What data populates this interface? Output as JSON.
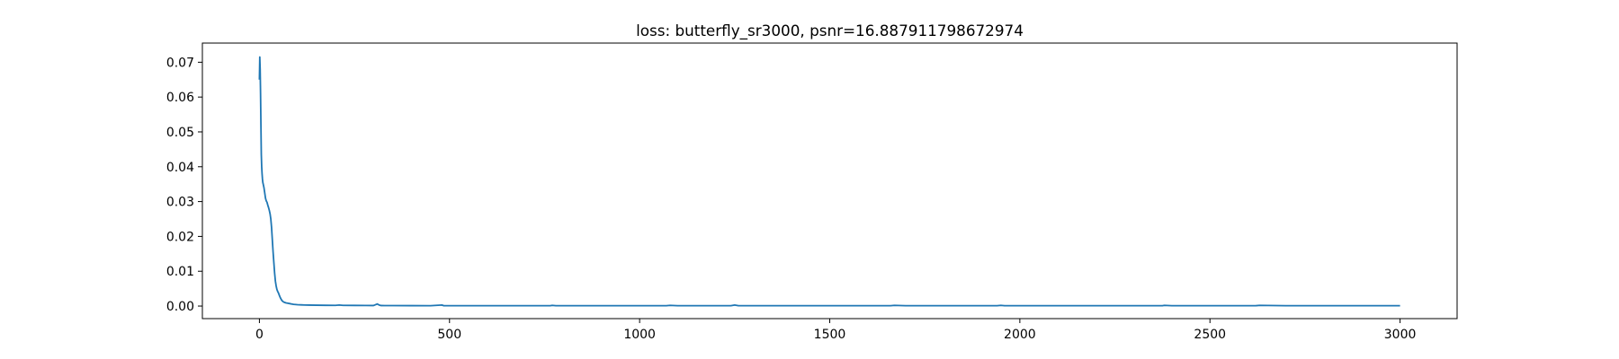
{
  "chart_data": {
    "type": "line",
    "title": "loss: butterfly_sr3000, psnr=16.887911798672974",
    "xlabel": "",
    "ylabel": "",
    "xlim": [
      -150,
      3150
    ],
    "ylim": [
      -0.0036,
      0.0755
    ],
    "xticks": [
      0,
      500,
      1000,
      1500,
      2000,
      2500,
      3000
    ],
    "xtick_labels": [
      "0",
      "500",
      "1000",
      "1500",
      "2000",
      "2500",
      "3000"
    ],
    "yticks": [
      0.0,
      0.01,
      0.02,
      0.03,
      0.04,
      0.05,
      0.06,
      0.07
    ],
    "ytick_labels": [
      "0.00",
      "0.01",
      "0.02",
      "0.03",
      "0.04",
      "0.05",
      "0.06",
      "0.07"
    ],
    "grid": false,
    "legend": "none",
    "line_color": "#1f77b4",
    "series": [
      {
        "x": [
          0,
          1,
          2,
          3,
          4,
          5,
          6,
          7,
          8,
          9,
          10,
          12,
          14,
          16,
          18,
          20,
          22,
          24,
          26,
          28,
          30,
          32,
          34,
          36,
          38,
          40,
          42,
          44,
          46,
          48,
          50,
          52,
          55,
          58,
          60,
          62,
          65,
          70,
          75,
          80,
          85,
          90,
          100,
          110,
          120,
          130,
          150,
          175,
          200,
          210,
          220,
          250,
          280,
          300,
          310,
          315,
          320,
          330,
          350,
          400,
          450,
          480,
          485,
          490,
          500,
          600,
          700,
          765,
          770,
          780,
          800,
          900,
          1000,
          1070,
          1080,
          1100,
          1200,
          1240,
          1250,
          1260,
          1300,
          1400,
          1500,
          1600,
          1660,
          1670,
          1700,
          1800,
          1900,
          1940,
          1950,
          1960,
          2000,
          2100,
          2200,
          2300,
          2375,
          2380,
          2400,
          2500,
          2600,
          2620,
          2630,
          2700,
          2800,
          2900,
          3000
        ],
        "y": [
          0.065,
          0.0715,
          0.068,
          0.061,
          0.052,
          0.0435,
          0.04,
          0.038,
          0.0365,
          0.0355,
          0.035,
          0.034,
          0.0325,
          0.031,
          0.0302,
          0.0298,
          0.029,
          0.0283,
          0.0275,
          0.0265,
          0.025,
          0.0225,
          0.019,
          0.0155,
          0.0125,
          0.0095,
          0.0072,
          0.0058,
          0.0048,
          0.0042,
          0.0038,
          0.0032,
          0.0024,
          0.0018,
          0.0015,
          0.0013,
          0.0011,
          0.0009,
          0.0008,
          0.0007,
          0.0006,
          0.0005,
          0.0004,
          0.00035,
          0.0003,
          0.00028,
          0.00025,
          0.00022,
          0.0002,
          0.0003,
          0.0002,
          0.00018,
          0.00016,
          0.00015,
          0.0006,
          0.0003,
          0.00015,
          0.00014,
          0.00013,
          0.00012,
          0.00011,
          0.0003,
          0.0001,
          0.0001,
          0.0001,
          0.0001,
          0.0001,
          0.0001,
          0.0002,
          0.0001,
          0.0001,
          0.0001,
          0.0001,
          0.0001,
          0.0002,
          0.0001,
          0.0001,
          0.0001,
          0.0003,
          0.0001,
          0.0001,
          0.0001,
          0.0001,
          0.0001,
          0.0001,
          0.0002,
          0.0001,
          0.0001,
          0.0001,
          0.0001,
          0.0002,
          0.0001,
          0.0001,
          0.0001,
          0.0001,
          0.0001,
          0.0001,
          0.0002,
          0.0001,
          0.0001,
          0.0001,
          0.0001,
          0.0002,
          0.0001,
          0.0001,
          0.0001,
          0.0001
        ]
      }
    ]
  }
}
